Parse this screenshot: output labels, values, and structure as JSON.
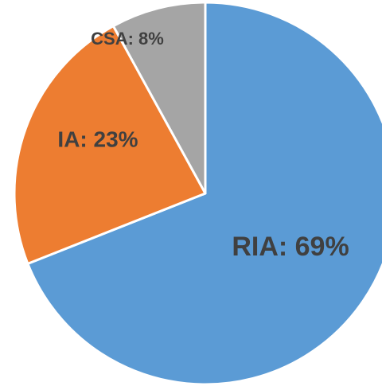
{
  "chart_data": {
    "type": "pie",
    "labels": [
      "RIA: 69%",
      "IA: 23%",
      "CSA: 8%"
    ],
    "values": [
      69,
      23,
      8
    ],
    "colors": [
      "#5b9bd5",
      "#ed7d31",
      "#a5a5a5"
    ]
  }
}
